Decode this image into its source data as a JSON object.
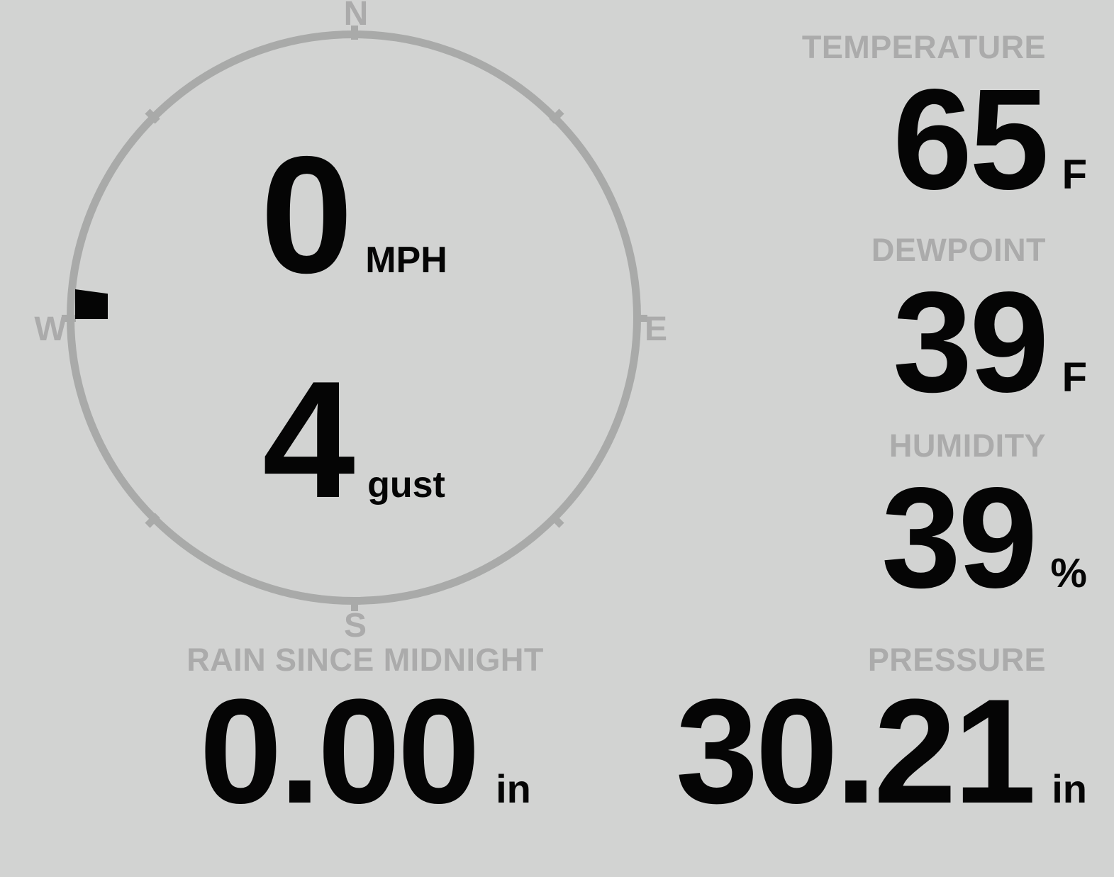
{
  "theme": {
    "background": "#d2d3d2",
    "muted_gray": "#ababab",
    "ring_gray": "#a9aaa9",
    "text_black": "#050505"
  },
  "compass": {
    "cardinals": {
      "north": "N",
      "east": "E",
      "south": "S",
      "west": "W"
    },
    "wind_speed": {
      "value": "0",
      "unit": "MPH"
    },
    "wind_gust": {
      "value": "4",
      "unit": "gust"
    },
    "direction_marker": "west"
  },
  "metrics": {
    "temperature": {
      "label": "TEMPERATURE",
      "value": "65",
      "unit": "F"
    },
    "dewpoint": {
      "label": "DEWPOINT",
      "value": "39",
      "unit": "F"
    },
    "humidity": {
      "label": "HUMIDITY",
      "value": "39",
      "unit": "%"
    },
    "rain": {
      "label": "RAIN SINCE MIDNIGHT",
      "value": "0.00",
      "unit": "in"
    },
    "pressure": {
      "label": "PRESSURE",
      "value": "30.21",
      "unit": "in"
    }
  }
}
